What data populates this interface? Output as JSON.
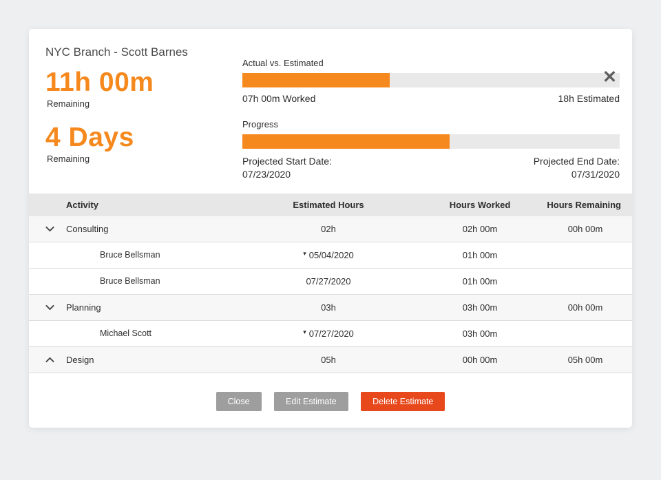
{
  "colors": {
    "accent_orange": "#F6891E",
    "delete_red": "#E8491C",
    "button_gray": "#9E9E9E"
  },
  "modal": {
    "title": "NYC Branch - Scott Barnes",
    "close_icon": "✕",
    "stats": [
      {
        "value": "11h 00m",
        "label": "Remaining"
      },
      {
        "value": "4 Days",
        "label": "Remaining"
      }
    ],
    "actual_vs_estimated": {
      "label": "Actual vs. Estimated",
      "worked_text": "07h 00m Worked",
      "estimated_text": "18h Estimated",
      "percent": 39
    },
    "progress": {
      "label": "Progress",
      "percent": 55,
      "start_label": "Projected Start Date:",
      "start_date": "07/23/2020",
      "end_label": "Projected End Date:",
      "end_date": "07/31/2020"
    },
    "table": {
      "headers": {
        "activity": "Activity",
        "estimated": "Estimated Hours",
        "worked": "Hours Worked",
        "remaining": "Hours Remaining"
      },
      "caret_icon": "▾",
      "rows": [
        {
          "type": "group",
          "name": "Consulting",
          "estimated": "02h",
          "worked": "02h 00m",
          "remaining": "00h 00m"
        },
        {
          "type": "detail",
          "name": "Bruce Bellsman",
          "date": "05/04/2020",
          "worked": "01h 00m"
        },
        {
          "type": "detail",
          "name": "Bruce Bellsman",
          "date": "07/27/2020",
          "worked": "01h 00m"
        },
        {
          "type": "group",
          "name": "Planning",
          "estimated": "03h",
          "worked": "03h 00m",
          "remaining": "00h 00m"
        },
        {
          "type": "detail",
          "name": "Michael Scott",
          "date": "07/27/2020",
          "worked": "03h 00m"
        },
        {
          "type": "group",
          "name": "Design",
          "estimated": "05h",
          "worked": "00h 00m",
          "remaining": "05h 00m"
        }
      ]
    },
    "footer": {
      "close_label": "Close",
      "edit_label": "Edit Estimate",
      "delete_label": "Delete Estimate"
    }
  }
}
